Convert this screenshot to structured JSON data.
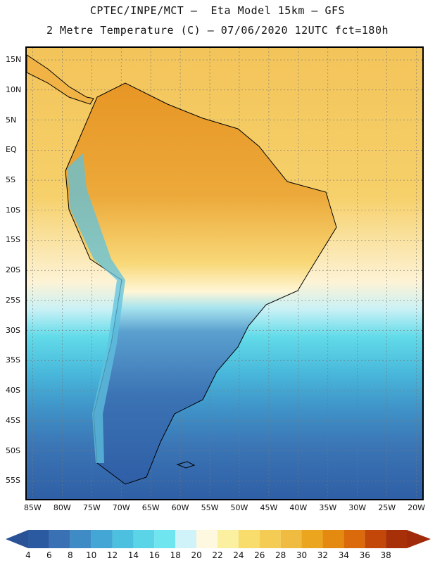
{
  "header": {
    "line1": "CPTEC/INPE/MCT –  Eta Model 15km – GFS",
    "line2": "2 Metre Temperature (C) – 07/06/2020 12UTC fct=180h"
  },
  "axes": {
    "lat_labels": [
      "15N",
      "10N",
      "5N",
      "EQ",
      "5S",
      "10S",
      "15S",
      "20S",
      "25S",
      "30S",
      "35S",
      "40S",
      "45S",
      "50S",
      "55S"
    ],
    "lon_labels": [
      "85W",
      "80W",
      "75W",
      "70W",
      "65W",
      "60W",
      "55W",
      "50W",
      "45W",
      "40W",
      "35W",
      "30W",
      "25W",
      "20W"
    ],
    "lat_range": [
      17,
      -58
    ],
    "lon_range": [
      -86,
      -19
    ]
  },
  "colorbar": {
    "labels": [
      "4",
      "6",
      "8",
      "10",
      "12",
      "14",
      "16",
      "18",
      "20",
      "22",
      "24",
      "26",
      "28",
      "30",
      "32",
      "34",
      "36",
      "38"
    ],
    "colors": [
      "#2b5aa0",
      "#3a70b4",
      "#3f8bc6",
      "#44a6d4",
      "#4dbfdf",
      "#5ad4e6",
      "#6fe6ef",
      "#cff3f8",
      "#fff8e0",
      "#fbf0a0",
      "#f8dc6c",
      "#f4cc54",
      "#efbb40",
      "#eba51e",
      "#e48a10",
      "#da6a0c",
      "#c4470a",
      "#a83008"
    ],
    "start_color": "#2a5296",
    "end_color": "#a02a0a"
  }
}
